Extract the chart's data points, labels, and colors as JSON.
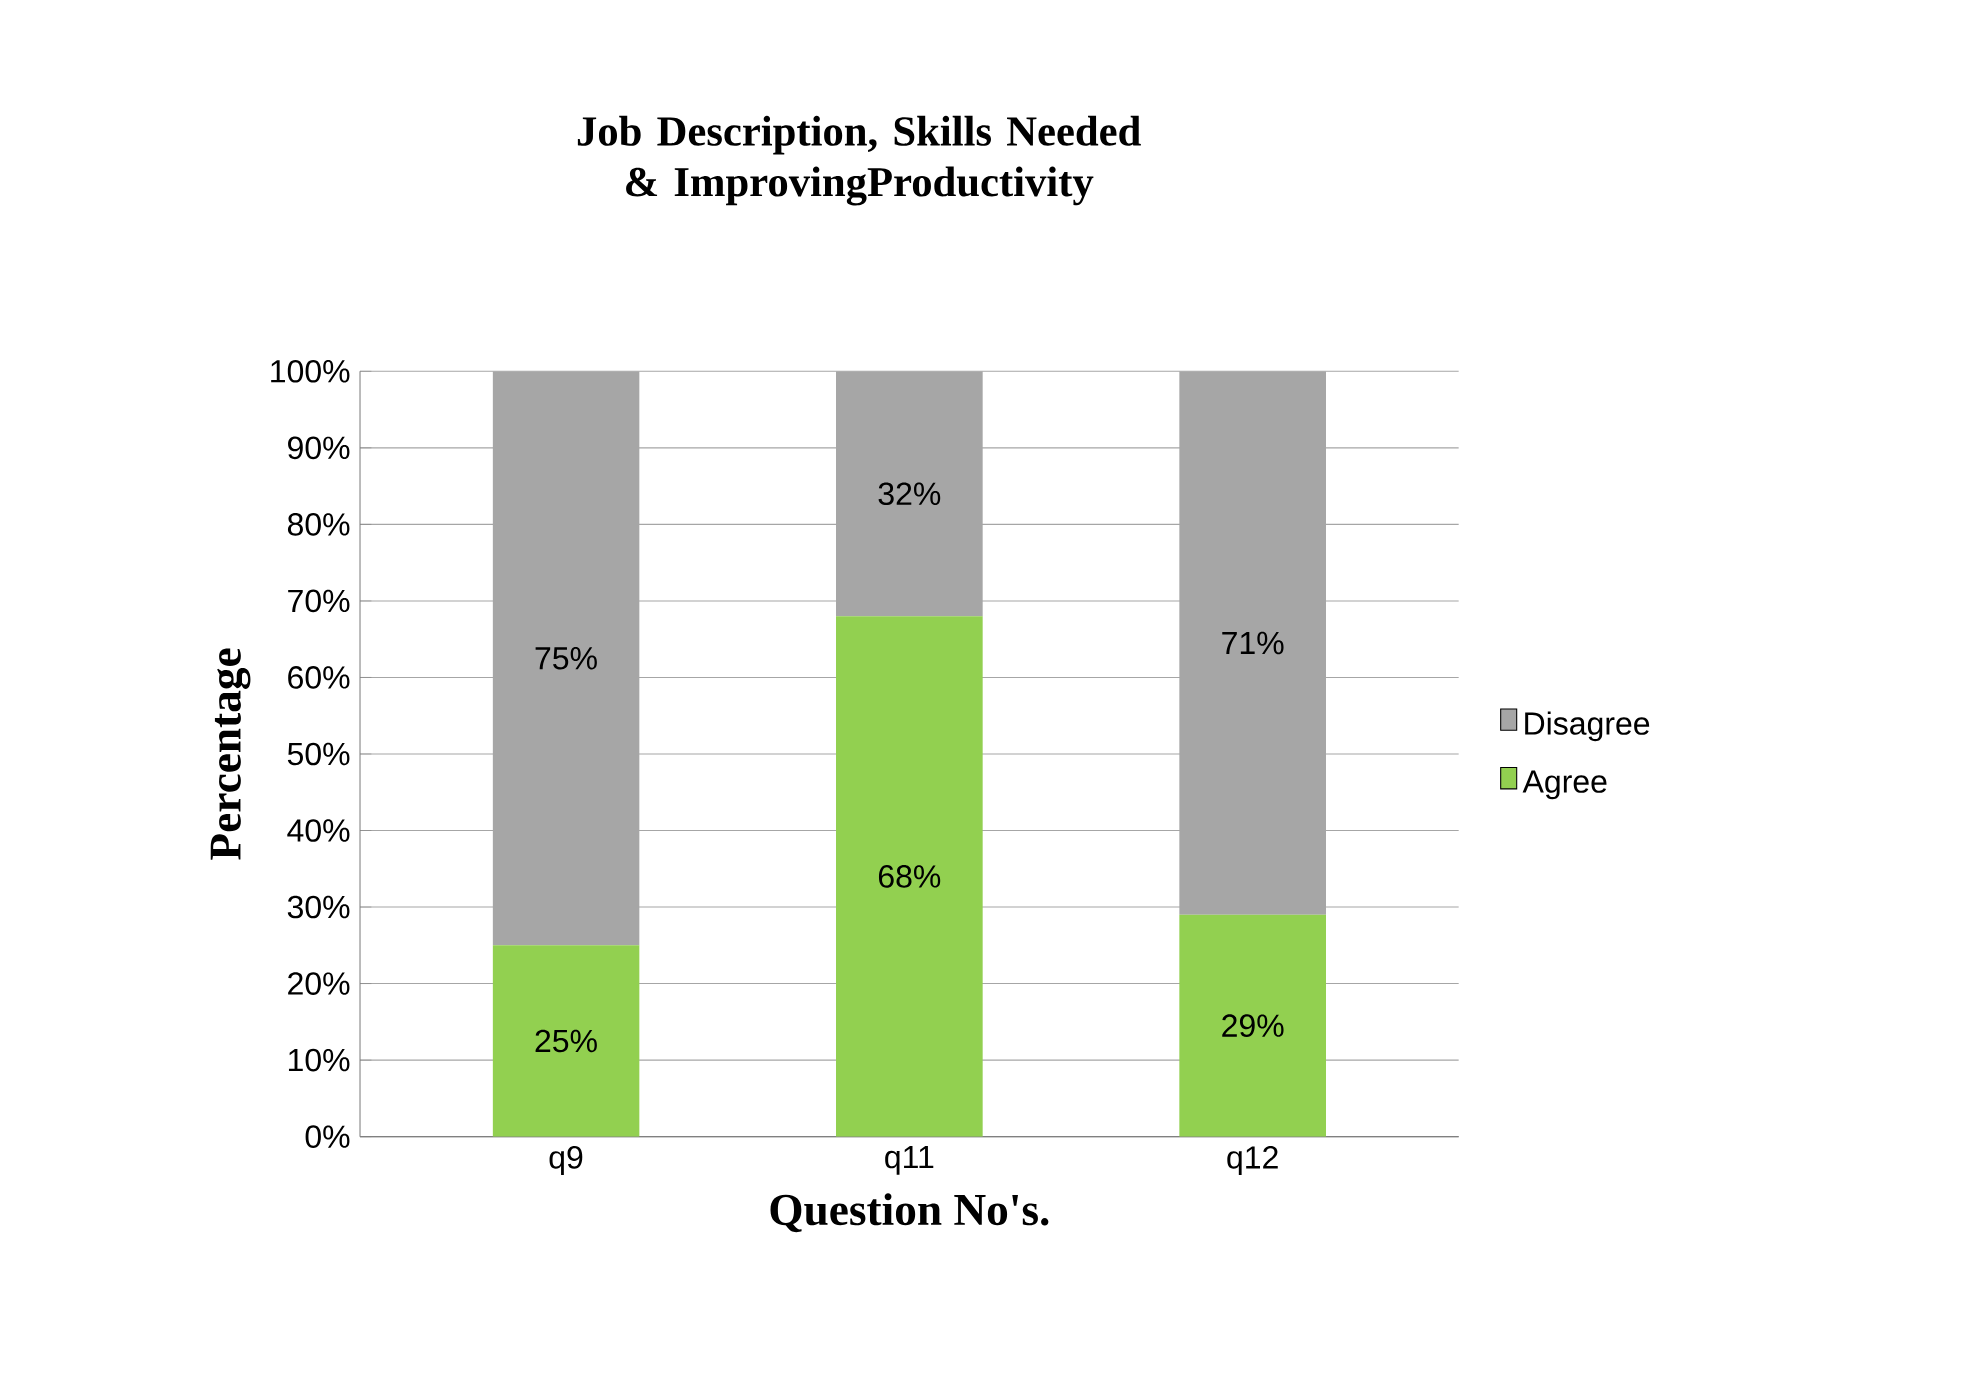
{
  "chart_data": {
    "type": "bar",
    "title": "Job Description, Skills Needed & ImprovingProductivity",
    "xlabel": "Question No's.",
    "ylabel": "Percentage",
    "categories": [
      "q9",
      "q11",
      "q12"
    ],
    "stacked": true,
    "series": [
      {
        "name": "Agree",
        "color": "#92d050",
        "values": [
          25,
          68,
          29
        ],
        "value_labels": [
          "25%",
          "68%",
          "29%"
        ]
      },
      {
        "name": "Disagree",
        "color": "#a6a6a6",
        "values": [
          75,
          32,
          71
        ],
        "value_labels": [
          "75%",
          "32%",
          "71%"
        ]
      }
    ],
    "ylim": [
      0,
      100
    ],
    "yticks": [
      {
        "value": 0,
        "label": "0%"
      },
      {
        "value": 10,
        "label": "10%"
      },
      {
        "value": 20,
        "label": "20%"
      },
      {
        "value": 30,
        "label": "30%"
      },
      {
        "value": 40,
        "label": "40%"
      },
      {
        "value": 50,
        "label": "50%"
      },
      {
        "value": 60,
        "label": "60%"
      },
      {
        "value": 70,
        "label": "70%"
      },
      {
        "value": 80,
        "label": "80%"
      },
      {
        "value": 90,
        "label": "90%"
      },
      {
        "value": 100,
        "label": "100%"
      }
    ],
    "grid": "y",
    "legend": "right"
  }
}
